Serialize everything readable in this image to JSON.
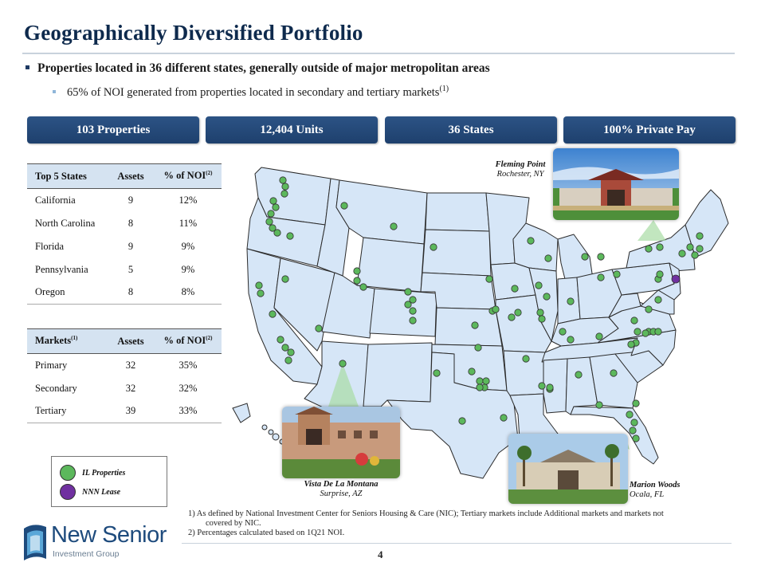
{
  "title": "Geographically Diversified Portfolio",
  "bullets": {
    "main": "Properties located in 36 different  states, generally outside  of major metropolitan  areas",
    "sub": "65% of NOI generated  from properties  located in secondary  and tertiary markets",
    "sub_sup": "(1)"
  },
  "stats": [
    "103 Properties",
    "12,404 Units",
    "36 States",
    "100% Private Pay"
  ],
  "top_states": {
    "headers": [
      "Top 5 States",
      "Assets",
      "% of NOI",
      "(2)"
    ],
    "rows": [
      [
        "California",
        "9",
        "12%"
      ],
      [
        "North Carolina",
        "8",
        "11%"
      ],
      [
        "Florida",
        "9",
        "9%"
      ],
      [
        "Pennsylvania",
        "5",
        "9%"
      ],
      [
        "Oregon",
        "8",
        "8%"
      ]
    ]
  },
  "markets": {
    "headers": [
      "Markets",
      "(1)",
      "Assets",
      "% of NOI",
      "(2)"
    ],
    "rows": [
      [
        "Primary",
        "32",
        "35%"
      ],
      [
        "Secondary",
        "32",
        "32%"
      ],
      [
        "Tertiary",
        "39",
        "33%"
      ]
    ]
  },
  "legend": [
    {
      "label": "IL Properties",
      "color": "#5cb85c"
    },
    {
      "label": "NNN Lease",
      "color": "#7030a0"
    }
  ],
  "callouts": {
    "fleming": {
      "name": "Fleming Point",
      "location": "Rochester, NY"
    },
    "vista": {
      "name": "Vista De La Montana",
      "location": "Surprise, AZ"
    },
    "marion": {
      "name": "Marion Woods",
      "location": "Ocala, FL"
    }
  },
  "footnotes": {
    "n1a": "1) As defined by National Investment Center for Seniors Housing & Care (NIC); Tertiary markets include Additional markets and markets not",
    "n1b": "covered by NIC.",
    "n2": "2) Percentages calculated based on 1Q21 NOI."
  },
  "page_number": "4",
  "logo": {
    "word": "New Senior",
    "sub": "Investment Group"
  },
  "colors": {
    "navy": "#1e406d",
    "map_fill": "#d6e6f7",
    "map_stroke": "#2b2b2b",
    "dot_green": "#5cb85c",
    "dot_purple": "#7030a0",
    "table_header": "#d5e3f1"
  }
}
